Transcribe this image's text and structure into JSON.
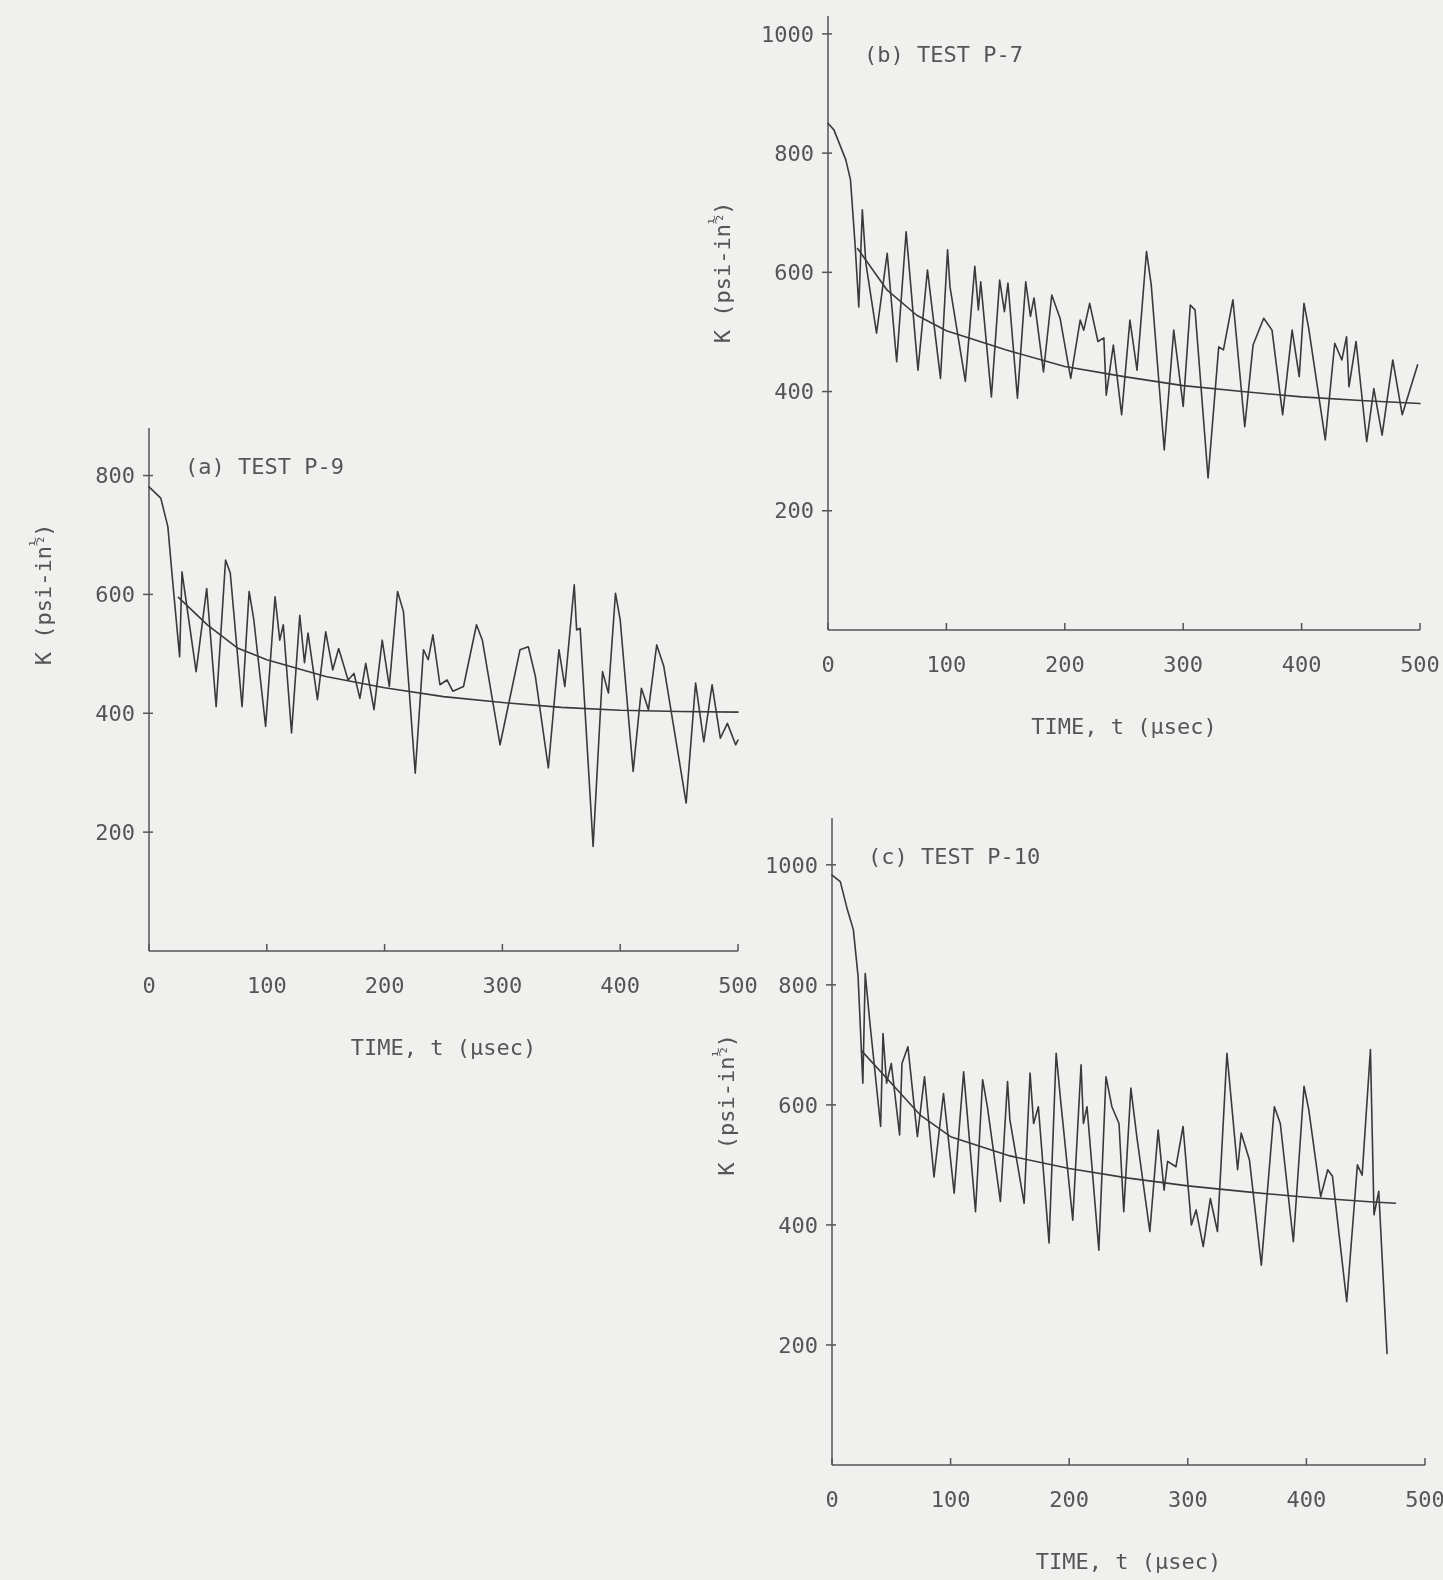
{
  "chart_data": [
    {
      "type": "line",
      "title": "(a) TEST P-9",
      "xlabel": "TIME, t  (μsec)",
      "ylabel": "K  (psi-in$^{½}$)",
      "xlim": [
        0,
        500
      ],
      "ylim": [
        0,
        880
      ],
      "xticks": [
        0,
        100,
        200,
        300,
        400,
        500
      ],
      "yticks": [
        200,
        400,
        600,
        800
      ],
      "grid": false,
      "series": [
        {
          "color": "#3a3a3a",
          "x": [
            0,
            10,
            16,
            20,
            26,
            28,
            40,
            49,
            57,
            65,
            69,
            79,
            85,
            89,
            99,
            107,
            111,
            114,
            121,
            128,
            132,
            135,
            143,
            150,
            156,
            161,
            169,
            174,
            179,
            184,
            191,
            198,
            204,
            211,
            216,
            226,
            233,
            237,
            241,
            247,
            253,
            258,
            267,
            278,
            283,
            298,
            315,
            322,
            328,
            339,
            348,
            353,
            361,
            363,
            366,
            377,
            385,
            390,
            396,
            400,
            411,
            418,
            424,
            431,
            437,
            456,
            464,
            471,
            478,
            485,
            491,
            498,
            500
          ],
          "values": [
            781,
            762,
            714,
            624,
            495,
            638,
            470,
            610,
            411,
            658,
            636,
            411,
            605,
            557,
            378,
            596,
            523,
            549,
            367,
            565,
            485,
            535,
            423,
            537,
            473,
            509,
            456,
            467,
            425,
            484,
            406,
            523,
            445,
            605,
            571,
            299,
            507,
            490,
            532,
            448,
            456,
            437,
            445,
            549,
            523,
            347,
            507,
            512,
            462,
            308,
            507,
            445,
            616,
            540,
            543,
            176,
            470,
            434,
            602,
            557,
            302,
            442,
            406,
            515,
            479,
            249,
            451,
            352,
            448,
            358,
            383,
            347,
            355
          ]
        },
        {
          "color": "#3a3a3a",
          "x": [
            25,
            50,
            75,
            100,
            150,
            200,
            250,
            300,
            350,
            400,
            450,
            500
          ],
          "values": [
            595,
            548,
            510,
            490,
            462,
            443,
            428,
            418,
            410,
            405,
            403,
            402
          ]
        }
      ]
    },
    {
      "type": "line",
      "title": "(b) TEST P-7",
      "xlabel": "TIME, t  (μsec)",
      "ylabel": "K  (psi-in$^{½}$)",
      "xlim": [
        0,
        500
      ],
      "ylim": [
        0,
        1030
      ],
      "xticks": [
        0,
        100,
        200,
        300,
        400,
        500
      ],
      "yticks": [
        200,
        400,
        600,
        800,
        1000
      ],
      "grid": false,
      "series": [
        {
          "color": "#3a3a3a",
          "x": [
            0,
            5,
            15,
            19,
            23,
            26,
            29,
            32,
            41,
            50,
            58,
            66,
            76,
            84,
            95,
            101,
            103,
            116,
            124,
            127,
            129,
            138,
            145,
            149,
            152,
            160,
            167,
            171,
            174,
            182,
            189,
            196,
            205,
            213,
            216,
            221,
            228,
            233,
            235,
            241,
            248,
            255,
            261,
            269,
            273,
            284,
            292,
            300,
            306,
            310,
            321,
            330,
            334,
            342,
            352,
            359,
            368,
            375,
            384,
            392,
            398,
            402,
            406,
            420,
            428,
            434,
            438,
            440,
            446,
            455,
            461,
            468,
            477,
            485,
            498
          ],
          "values": [
            850,
            839,
            789,
            755,
            643,
            542,
            705,
            615,
            498,
            632,
            450,
            668,
            436,
            604,
            422,
            638,
            576,
            417,
            610,
            537,
            584,
            391,
            587,
            534,
            582,
            389,
            584,
            526,
            557,
            433,
            562,
            523,
            422,
            520,
            503,
            548,
            484,
            490,
            394,
            478,
            361,
            520,
            436,
            635,
            579,
            302,
            503,
            375,
            545,
            537,
            255,
            475,
            470,
            554,
            341,
            478,
            523,
            503,
            361,
            503,
            425,
            548,
            506,
            319,
            481,
            453,
            492,
            408,
            484,
            316,
            405,
            327,
            453,
            361,
            445
          ]
        },
        {
          "color": "#3a3a3a",
          "x": [
            25,
            50,
            75,
            100,
            150,
            200,
            250,
            300,
            350,
            400,
            450,
            500
          ],
          "values": [
            640,
            570,
            528,
            502,
            470,
            442,
            425,
            410,
            400,
            391,
            385,
            380
          ]
        }
      ]
    },
    {
      "type": "line",
      "title": "(c) TEST P-10",
      "xlabel": "TIME, t  (μsec)",
      "ylabel": "K  (psi-in$^{½}$)",
      "xlim": [
        0,
        500
      ],
      "ylim": [
        0,
        1078
      ],
      "xticks": [
        0,
        100,
        200,
        300,
        400,
        500
      ],
      "yticks": [
        200,
        400,
        600,
        {
          "value": 800,
          "label": "800"
        },
        1000
      ],
      "grid": false,
      "series": [
        {
          "color": "#3a3a3a",
          "x": [
            0,
            7,
            13,
            18,
            22,
            26,
            28,
            32,
            41,
            43,
            46,
            50,
            57,
            59,
            64,
            72,
            78,
            86,
            94,
            103,
            111,
            121,
            127,
            131,
            142,
            148,
            150,
            162,
            167,
            170,
            174,
            183,
            189,
            193,
            203,
            210,
            212,
            215,
            225,
            231,
            236,
            242,
            246,
            252,
            257,
            268,
            275,
            280,
            283,
            290,
            296,
            303,
            307,
            313,
            319,
            325,
            333,
            342,
            345,
            352,
            362,
            373,
            378,
            389,
            398,
            402,
            412,
            418,
            422,
            434,
            443,
            447,
            454,
            457,
            461,
            468
          ],
          "values": [
            983,
            972,
            925,
            892,
            814,
            636,
            819,
            736,
            564,
            719,
            636,
            669,
            550,
            669,
            697,
            547,
            647,
            480,
            619,
            453,
            655,
            422,
            642,
            597,
            439,
            639,
            575,
            436,
            653,
            569,
            597,
            370,
            686,
            603,
            408,
            667,
            569,
            597,
            358,
            647,
            597,
            569,
            422,
            628,
            547,
            389,
            558,
            458,
            506,
            497,
            564,
            400,
            425,
            364,
            444,
            389,
            686,
            492,
            553,
            508,
            333,
            597,
            569,
            372,
            631,
            592,
            447,
            492,
            481,
            272,
            500,
            483,
            692,
            417,
            456,
            186
          ]
        },
        {
          "color": "#3a3a3a",
          "x": [
            25,
            50,
            75,
            100,
            150,
            200,
            250,
            300,
            350,
            400,
            450,
            475
          ],
          "values": [
            690,
            636,
            582,
            547,
            515,
            494,
            478,
            465,
            455,
            446,
            439,
            436
          ]
        }
      ]
    }
  ]
}
